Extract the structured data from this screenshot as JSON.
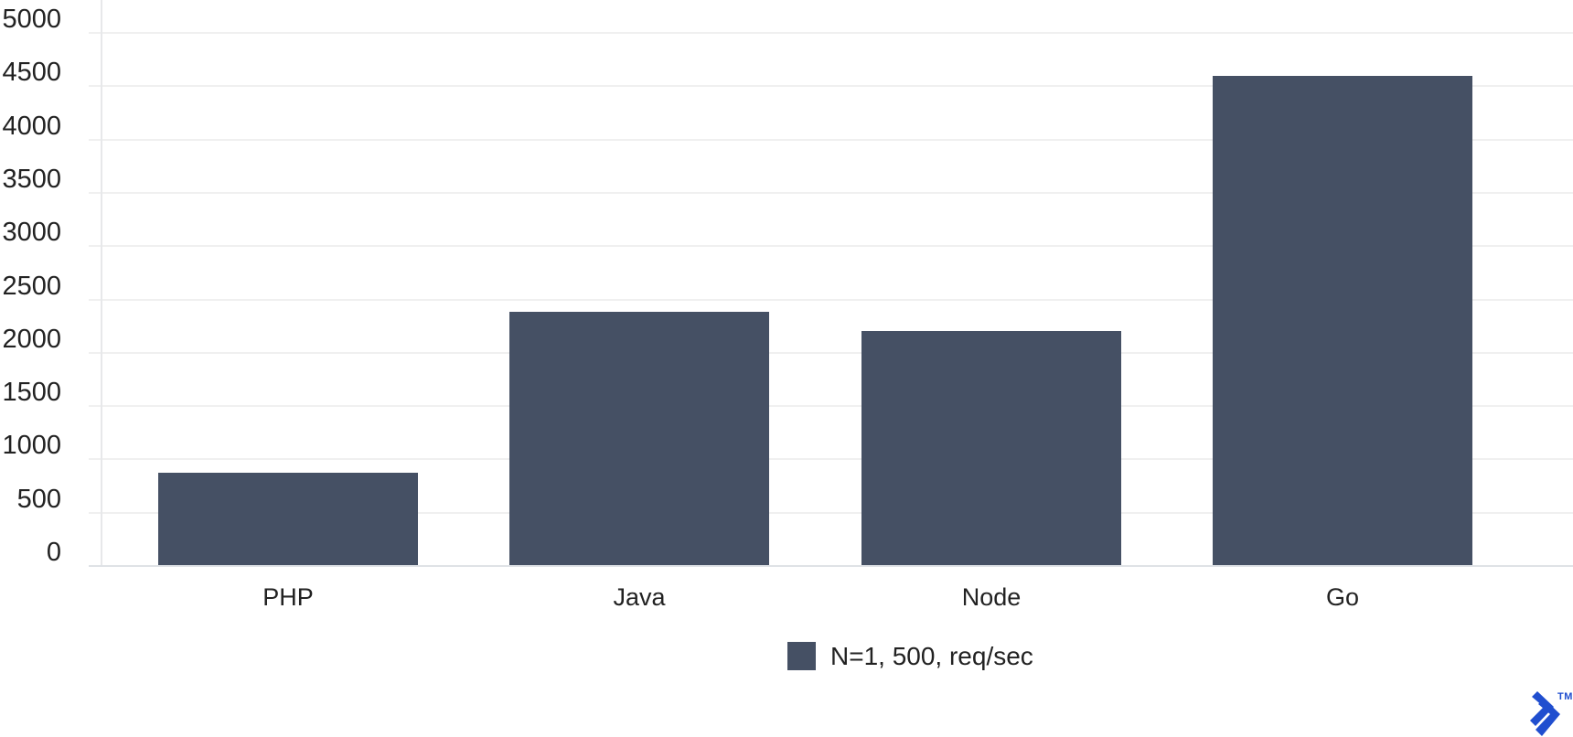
{
  "chart_data": {
    "type": "bar",
    "title": "",
    "categories": [
      "PHP",
      "Java",
      "Node",
      "Go"
    ],
    "series": [
      {
        "name": "N=1, 500, req/sec",
        "values": [
          865,
          2375,
          2195,
          4590
        ],
        "color": "#455064"
      }
    ],
    "xlabel": "",
    "ylabel": "",
    "ylim": [
      0,
      5000
    ],
    "ytick_step": 500,
    "ytick_labels": [
      "0",
      "500",
      "1000",
      "1500",
      "2000",
      "2500",
      "3000",
      "3500",
      "4000",
      "4500",
      "5000"
    ],
    "grid": "horizontal",
    "legend_position": "bottom"
  },
  "legend": {
    "label": "N=1, 500, req/sec"
  },
  "branding": {
    "logo_name": "toptal-logomark",
    "trademark_label": "TM"
  },
  "colors": {
    "bar": "#455064",
    "background": "#ffffff",
    "grid_line": "#f0f0f0",
    "y_axis_line": "#e7e8ea",
    "baseline": "#dfe2e6",
    "text": "#222222",
    "logo_blue": "#204ECF"
  }
}
